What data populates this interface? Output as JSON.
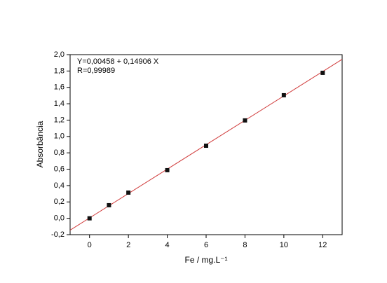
{
  "chart_data": {
    "type": "scatter",
    "x_label": "Fe / mg.L⁻¹",
    "y_label": "Absorbância",
    "x": [
      0,
      1,
      2,
      4,
      6,
      8,
      10,
      12
    ],
    "values": [
      0.0,
      0.16,
      0.314,
      0.588,
      0.887,
      1.196,
      1.504,
      1.778
    ],
    "color": "#111111",
    "fit": {
      "equation": "Y=0,00458 + 0,14906 X",
      "r": "R=0,99989",
      "intercept": 0.00458,
      "slope": 0.14906,
      "color": "#d03a3a"
    },
    "xlim": [
      -1,
      13
    ],
    "xticks": [
      0,
      2,
      4,
      6,
      8,
      10,
      12
    ],
    "ylim": [
      -0.2,
      2.0
    ],
    "yticks": [
      {
        "value": -0.2,
        "label": "-0,2"
      },
      {
        "value": 0.0,
        "label": "0,0"
      },
      {
        "value": 0.2,
        "label": "0,2"
      },
      {
        "value": 0.4,
        "label": "0,4"
      },
      {
        "value": 0.6,
        "label": "0,6"
      },
      {
        "value": 0.8,
        "label": "0,8"
      },
      {
        "value": 1.0,
        "label": "1,0"
      },
      {
        "value": 1.2,
        "label": "1,2"
      },
      {
        "value": 1.4,
        "label": "1,4"
      },
      {
        "value": 1.6,
        "label": "1,6"
      },
      {
        "value": 1.8,
        "label": "1,8"
      },
      {
        "value": 2.0,
        "label": "2,0"
      }
    ]
  }
}
